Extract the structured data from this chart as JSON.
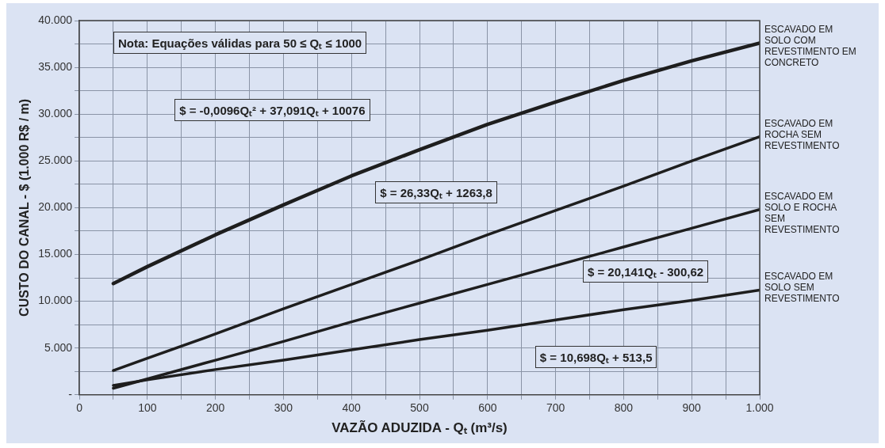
{
  "chart_data": {
    "type": "line",
    "xlabel": "VAZÃO ADUZIDA - Qₜ (m³/s)",
    "ylabel": "CUSTO DO CANAL - $ (1.000 R$ / m)",
    "x": [
      50,
      100,
      200,
      300,
      400,
      500,
      600,
      700,
      800,
      900,
      1000
    ],
    "series": [
      {
        "name": "ESCAVADO EM SOLO COM REVESTIMENTO EM CONCRETO",
        "color": "#1e1e1e",
        "values": [
          11900,
          13700,
          17100,
          20300,
          23400,
          26200,
          28900,
          31300,
          33600,
          35700,
          37600
        ]
      },
      {
        "name": "ESCAVADO EM ROCHA SEM REVESTIMENTO",
        "color": "#1e1e1e",
        "values": [
          2600,
          3900,
          6500,
          9200,
          11800,
          14400,
          17100,
          19700,
          22300,
          25000,
          27600
        ]
      },
      {
        "name": "ESCAVADO EM SOLO E ROCHA  SEM REVESTIMENTO",
        "color": "#1e1e1e",
        "values": [
          700,
          1700,
          3700,
          5700,
          7800,
          9800,
          11800,
          13800,
          15800,
          17800,
          19800
        ]
      },
      {
        "name": "ESCAVADO EM SOLO SEM REVESTIMENTO",
        "color": "#1e1e1e",
        "values": [
          1000,
          1600,
          2700,
          3700,
          4800,
          5900,
          6900,
          8000,
          9100,
          10100,
          11200
        ]
      }
    ],
    "xlim": [
      0,
      1000
    ],
    "xticks": [
      0,
      {
        "value": 50,
        "label": null
      },
      100,
      {
        "value": 150,
        "label": null
      },
      200,
      {
        "value": 250,
        "label": null
      },
      300,
      {
        "value": 350,
        "label": null
      },
      400,
      {
        "value": 450,
        "label": null
      },
      500,
      {
        "value": 550,
        "label": null
      },
      600,
      {
        "value": 650,
        "label": null
      },
      700,
      {
        "value": 750,
        "label": null
      },
      800,
      {
        "value": 850,
        "label": null
      },
      900,
      {
        "value": 950,
        "label": null
      },
      {
        "value": 1000,
        "label": "1.000"
      }
    ],
    "ylim": [
      0,
      40000
    ],
    "yticks": [
      {
        "value": 0,
        "label": "-"
      },
      {
        "value": 2500,
        "label": null
      },
      {
        "value": 5000,
        "label": "5.000"
      },
      {
        "value": 7500,
        "label": null
      },
      {
        "value": 10000,
        "label": "10.000"
      },
      {
        "value": 12500,
        "label": null
      },
      {
        "value": 15000,
        "label": "15.000"
      },
      {
        "value": 17500,
        "label": null
      },
      {
        "value": 20000,
        "label": "20.000"
      },
      {
        "value": 22500,
        "label": null
      },
      {
        "value": 25000,
        "label": "25.000"
      },
      {
        "value": 27500,
        "label": null
      },
      {
        "value": 30000,
        "label": "30.000"
      },
      {
        "value": 32500,
        "label": null
      },
      {
        "value": 35000,
        "label": "35.000"
      },
      {
        "value": 37500,
        "label": null
      },
      {
        "value": 40000,
        "label": "40.000"
      }
    ],
    "annotations": [
      "Nota: Equações válidas para 50 ≤  Qₜ ≤ 1000",
      "$ = -0,0096Qₜ² + 37,091Qₜ + 10076",
      "$ = 26,33Qₜ + 1263,8",
      "$ = 20,141Qₜ - 300,62",
      "$ = 10,698Qₜ + 513,5"
    ],
    "grid": true,
    "legend": false,
    "marker": "none",
    "line_style": "solid"
  }
}
